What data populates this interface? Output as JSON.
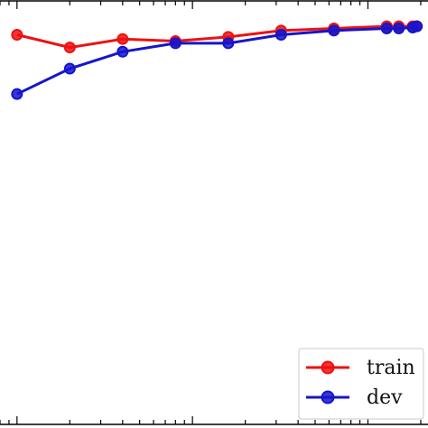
{
  "chart_data": {
    "type": "line",
    "xscale": "log",
    "title": "",
    "xlabel": "",
    "ylabel": "",
    "xlim": [
      8,
      2200
    ],
    "ylim": [
      0,
      1
    ],
    "grid": false,
    "legend_position": "lower-right",
    "series": [
      {
        "name": "train",
        "color": "#ee1111",
        "marker": "circle",
        "x": [
          10,
          20,
          40,
          80,
          160,
          320,
          640,
          1280,
          1500,
          1800,
          1900
        ],
        "y": [
          0.92,
          0.89,
          0.91,
          0.905,
          0.915,
          0.93,
          0.935,
          0.94,
          0.94,
          0.94,
          0.94
        ]
      },
      {
        "name": "dev",
        "color": "#1515cc",
        "marker": "circle",
        "x": [
          10,
          20,
          40,
          80,
          160,
          320,
          640,
          1280,
          1500,
          1800,
          1900
        ],
        "y": [
          0.78,
          0.84,
          0.88,
          0.9,
          0.9,
          0.92,
          0.93,
          0.935,
          0.935,
          0.937,
          0.94
        ]
      }
    ]
  }
}
